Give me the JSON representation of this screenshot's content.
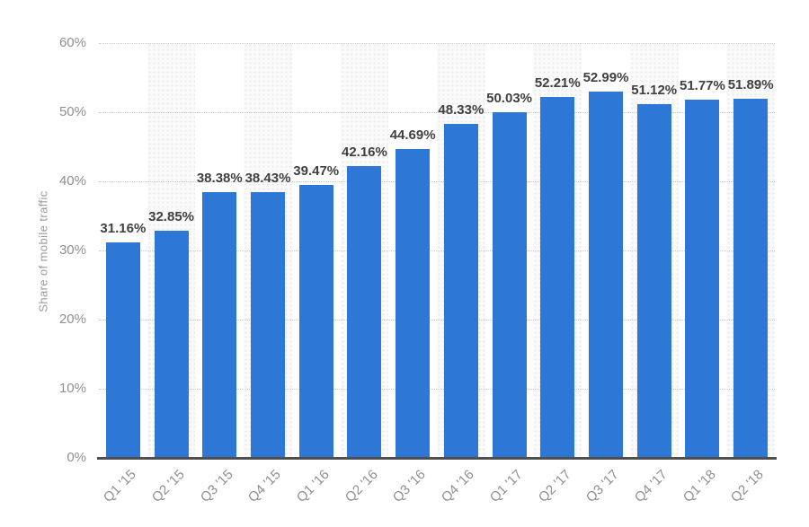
{
  "chart_data": {
    "type": "bar",
    "title": "",
    "xlabel": "",
    "ylabel": "Share of mobile traffic",
    "categories": [
      "Q1 '15",
      "Q2 '15",
      "Q3 '15",
      "Q4 '15",
      "Q1 '16",
      "Q2 '16",
      "Q3 '16",
      "Q4 '16",
      "Q1 '17",
      "Q2 '17",
      "Q3 '17",
      "Q4 '17",
      "Q1 '18",
      "Q2 '18"
    ],
    "values": [
      31.16,
      32.85,
      38.38,
      38.43,
      39.47,
      42.16,
      44.69,
      48.33,
      50.03,
      52.21,
      52.99,
      51.12,
      51.77,
      51.89
    ],
    "value_labels": [
      "31.16%",
      "32.85%",
      "38.38%",
      "38.43%",
      "39.47%",
      "42.16%",
      "44.69%",
      "48.33%",
      "50.03%",
      "52.21%",
      "52.99%",
      "51.12%",
      "51.77%",
      "51.89%"
    ],
    "ylim": [
      0,
      60
    ],
    "yticks": [
      0,
      10,
      20,
      30,
      40,
      50,
      60
    ],
    "ytick_labels": [
      "0%",
      "10%",
      "20%",
      "30%",
      "40%",
      "50%",
      "60%"
    ],
    "grid": "horizontal-dotted",
    "legend": "none",
    "plot_bands": "alternating vertical bands behind even columns",
    "colors": {
      "bar": "#2d78d7",
      "value_label": "#404040",
      "tick_label": "#8f8f8f",
      "axis_title": "#9a9a9a",
      "gridline": "#c9c9c9",
      "axis_line": "#4f4f4f",
      "band_dot": "#e9e9e9",
      "background": "#ffffff"
    }
  }
}
